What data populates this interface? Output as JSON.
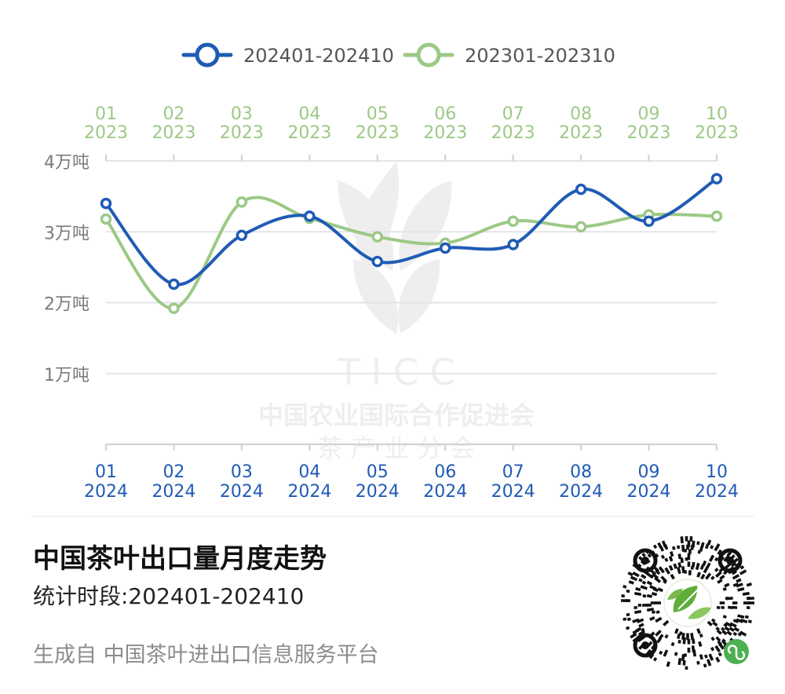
{
  "chart_data": {
    "type": "line",
    "smooth": true,
    "categories_top": [
      [
        "01",
        "2023"
      ],
      [
        "02",
        "2023"
      ],
      [
        "03",
        "2023"
      ],
      [
        "04",
        "2023"
      ],
      [
        "05",
        "2023"
      ],
      [
        "06",
        "2023"
      ],
      [
        "07",
        "2023"
      ],
      [
        "08",
        "2023"
      ],
      [
        "09",
        "2023"
      ],
      [
        "10",
        "2023"
      ]
    ],
    "categories_bottom": [
      [
        "01",
        "2024"
      ],
      [
        "02",
        "2024"
      ],
      [
        "03",
        "2024"
      ],
      [
        "04",
        "2024"
      ],
      [
        "05",
        "2024"
      ],
      [
        "06",
        "2024"
      ],
      [
        "07",
        "2024"
      ],
      [
        "08",
        "2024"
      ],
      [
        "09",
        "2024"
      ],
      [
        "10",
        "2024"
      ]
    ],
    "ylim": [
      0,
      4
    ],
    "y_ticks": [
      {
        "value": 1,
        "label": "1万吨"
      },
      {
        "value": 2,
        "label": "2万吨"
      },
      {
        "value": 3,
        "label": "3万吨"
      },
      {
        "value": 4,
        "label": "4万吨"
      }
    ],
    "grid": true,
    "legend_position": "top-center",
    "series": [
      {
        "name": "202401-202410",
        "color": "#1f5bb5",
        "values": [
          3.4,
          2.26,
          2.95,
          3.22,
          2.58,
          2.77,
          2.82,
          3.6,
          3.15,
          3.75
        ]
      },
      {
        "name": "202301-202310",
        "color": "#9cc986",
        "values": [
          3.18,
          1.92,
          3.42,
          3.19,
          2.93,
          2.84,
          3.15,
          3.07,
          3.24,
          3.22
        ]
      }
    ],
    "watermark": {
      "line1": "T I C C",
      "line2": "中国农业国际合作促进会",
      "line3": "茶 产 业 分 会"
    }
  },
  "footer": {
    "title": "中国茶叶出口量月度走势",
    "period": "统计时段:202401-202410",
    "source": "生成自 中国茶叶进出口信息服务平台"
  },
  "colors": {
    "blue": "#1f5bb5",
    "green": "#9cc986",
    "grid": "#e3e3ea",
    "axis_text": "#7a7a7a"
  },
  "qr_icon": "qr-code-icon"
}
